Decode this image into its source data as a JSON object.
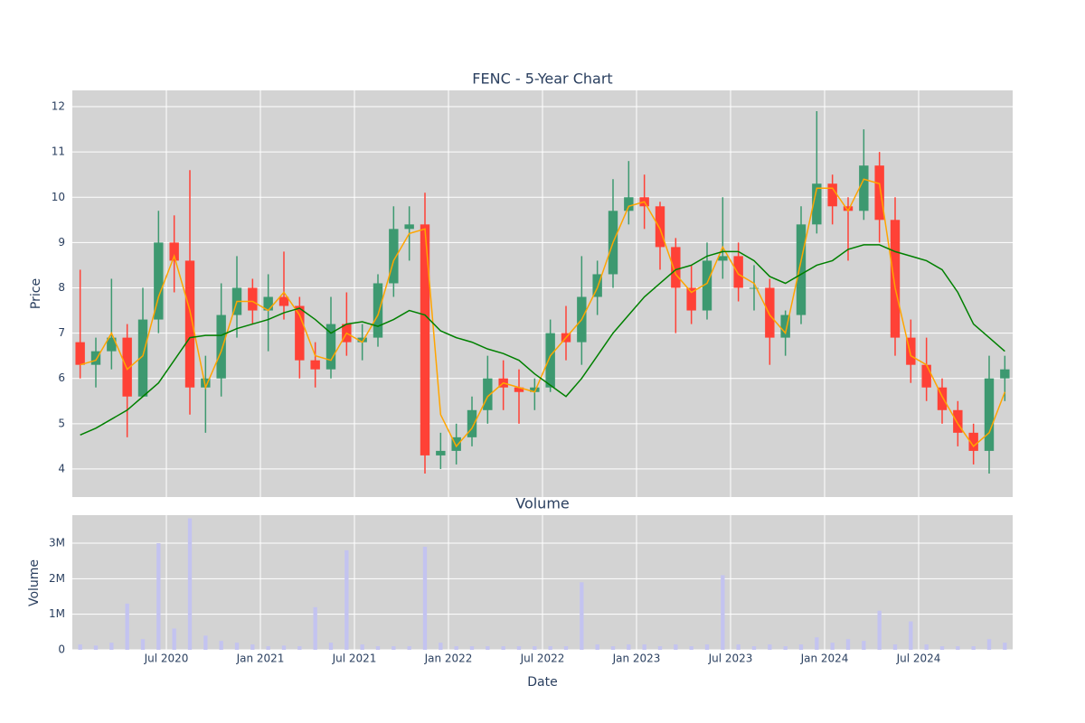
{
  "chart_data": [
    {
      "type": "candlestick",
      "title": "FENC - 5-Year Chart",
      "y_label": "Price",
      "x": [
        "2020-01",
        "2020-02",
        "2020-03",
        "2020-04",
        "2020-05",
        "2020-06",
        "2020-07",
        "2020-08",
        "2020-09",
        "2020-10",
        "2020-11",
        "2020-12",
        "2021-01",
        "2021-02",
        "2021-03",
        "2021-04",
        "2021-05",
        "2021-06",
        "2021-07",
        "2021-08",
        "2021-09",
        "2021-10",
        "2021-11",
        "2021-12",
        "2022-01",
        "2022-02",
        "2022-03",
        "2022-04",
        "2022-05",
        "2022-06",
        "2022-07",
        "2022-08",
        "2022-09",
        "2022-10",
        "2022-11",
        "2022-12",
        "2023-01",
        "2023-02",
        "2023-03",
        "2023-04",
        "2023-05",
        "2023-06",
        "2023-07",
        "2023-08",
        "2023-09",
        "2023-10",
        "2023-11",
        "2023-12",
        "2024-01",
        "2024-02",
        "2024-03",
        "2024-04",
        "2024-05",
        "2024-06",
        "2024-07",
        "2024-08",
        "2024-09",
        "2024-10",
        "2024-11",
        "2024-12"
      ],
      "open": [
        6.8,
        6.3,
        6.6,
        6.9,
        5.6,
        7.3,
        9.0,
        8.6,
        5.8,
        6.0,
        7.4,
        8.0,
        7.5,
        7.8,
        7.6,
        6.4,
        6.2,
        7.2,
        6.8,
        6.9,
        8.1,
        9.3,
        9.4,
        4.3,
        4.4,
        4.7,
        5.3,
        6.0,
        5.8,
        5.7,
        5.8,
        7.0,
        6.8,
        7.8,
        8.3,
        9.7,
        10.0,
        9.8,
        8.9,
        8.0,
        7.5,
        8.6,
        8.7,
        8.0,
        8.0,
        6.9,
        7.4,
        9.4,
        10.3,
        9.8,
        9.7,
        10.7,
        9.5,
        6.9,
        6.3,
        5.8,
        5.3,
        4.8,
        4.4,
        6.0
      ],
      "high": [
        8.4,
        6.9,
        8.2,
        7.2,
        8.0,
        9.7,
        9.6,
        10.6,
        6.5,
        8.1,
        8.7,
        8.2,
        8.3,
        8.8,
        7.8,
        6.8,
        7.8,
        7.9,
        7.2,
        8.3,
        9.8,
        9.8,
        10.1,
        4.8,
        5.0,
        5.6,
        6.5,
        6.4,
        6.2,
        6.0,
        7.3,
        7.6,
        8.7,
        8.6,
        10.4,
        10.8,
        10.5,
        9.9,
        9.1,
        8.5,
        9.0,
        10.0,
        9.0,
        8.5,
        8.2,
        7.5,
        9.8,
        11.9,
        10.5,
        10.0,
        11.5,
        11.0,
        10.0,
        7.3,
        6.9,
        6.0,
        5.5,
        5.0,
        6.5,
        6.5
      ],
      "low": [
        6.0,
        5.8,
        6.2,
        4.7,
        5.6,
        7.0,
        7.9,
        5.2,
        4.8,
        5.6,
        6.9,
        7.2,
        6.6,
        7.3,
        6.0,
        5.8,
        6.0,
        6.5,
        6.4,
        6.7,
        7.8,
        8.6,
        3.9,
        4.0,
        4.1,
        4.5,
        5.0,
        5.3,
        5.0,
        5.3,
        5.7,
        6.4,
        6.3,
        7.4,
        8.0,
        9.4,
        9.3,
        8.4,
        7.0,
        7.2,
        7.3,
        8.2,
        7.7,
        7.5,
        6.3,
        6.5,
        7.2,
        9.2,
        9.4,
        8.6,
        9.5,
        9.0,
        6.5,
        5.9,
        5.5,
        5.0,
        4.5,
        4.1,
        3.9,
        5.5
      ],
      "close": [
        6.3,
        6.6,
        6.9,
        5.6,
        7.3,
        9.0,
        8.6,
        5.8,
        6.0,
        7.4,
        8.0,
        7.5,
        7.8,
        7.6,
        6.4,
        6.2,
        7.2,
        6.8,
        6.9,
        8.1,
        9.3,
        9.4,
        4.3,
        4.4,
        4.7,
        5.3,
        6.0,
        5.8,
        5.7,
        5.8,
        7.0,
        6.8,
        7.8,
        8.3,
        9.7,
        10.0,
        9.8,
        8.9,
        8.0,
        7.5,
        8.6,
        8.7,
        8.0,
        8.0,
        6.9,
        7.4,
        9.4,
        10.3,
        9.8,
        9.7,
        10.7,
        9.5,
        6.9,
        6.3,
        5.8,
        5.3,
        4.8,
        4.4,
        6.0,
        6.2
      ],
      "increasing_color": "#3d9970",
      "decreasing_color": "#ff4136",
      "lines": [
        {
          "color": "orange",
          "values": [
            6.3,
            6.4,
            7.0,
            6.2,
            6.5,
            7.8,
            8.7,
            7.5,
            5.8,
            6.6,
            7.7,
            7.7,
            7.5,
            7.9,
            7.4,
            6.5,
            6.4,
            7.0,
            6.8,
            7.4,
            8.6,
            9.2,
            9.3,
            5.2,
            4.5,
            4.9,
            5.6,
            5.9,
            5.8,
            5.7,
            6.5,
            6.9,
            7.3,
            8.0,
            9.0,
            9.8,
            9.9,
            9.3,
            8.3,
            7.9,
            8.1,
            8.9,
            8.3,
            8.1,
            7.4,
            7.0,
            8.6,
            10.2,
            10.2,
            9.7,
            10.4,
            10.3,
            8.0,
            6.5,
            6.3,
            5.6,
            5.0,
            4.5,
            4.8,
            5.7
          ]
        },
        {
          "color": "green",
          "values": [
            4.75,
            4.9,
            5.1,
            5.3,
            5.6,
            5.9,
            6.4,
            6.9,
            6.95,
            6.95,
            7.1,
            7.2,
            7.3,
            7.45,
            7.55,
            7.3,
            7.0,
            7.2,
            7.25,
            7.15,
            7.3,
            7.5,
            7.4,
            7.05,
            6.9,
            6.8,
            6.65,
            6.55,
            6.4,
            6.1,
            5.85,
            5.6,
            6.0,
            6.5,
            7.0,
            7.4,
            7.8,
            8.1,
            8.4,
            8.5,
            8.7,
            8.8,
            8.8,
            8.6,
            8.25,
            8.1,
            8.3,
            8.5,
            8.6,
            8.85,
            8.95,
            8.95,
            8.8,
            8.7,
            8.6,
            8.4,
            7.9,
            7.2,
            6.9,
            6.6
          ]
        }
      ],
      "xlim": [
        "2020-01",
        "2025-01"
      ],
      "ylim": [
        3.38,
        12.36
      ],
      "yticks": [
        4,
        5,
        6,
        7,
        8,
        9,
        10,
        11,
        12
      ],
      "grid": true,
      "background": "#d3d3d3"
    },
    {
      "type": "bar",
      "title": "Volume",
      "x_label": "Date",
      "y_label": "Volume",
      "x": [
        "2020-01",
        "2020-02",
        "2020-03",
        "2020-04",
        "2020-05",
        "2020-06",
        "2020-07",
        "2020-08",
        "2020-09",
        "2020-10",
        "2020-11",
        "2020-12",
        "2021-01",
        "2021-02",
        "2021-03",
        "2021-04",
        "2021-05",
        "2021-06",
        "2021-07",
        "2021-08",
        "2021-09",
        "2021-10",
        "2021-11",
        "2021-12",
        "2022-01",
        "2022-02",
        "2022-03",
        "2022-04",
        "2022-05",
        "2022-06",
        "2022-07",
        "2022-08",
        "2022-09",
        "2022-10",
        "2022-11",
        "2022-12",
        "2023-01",
        "2023-02",
        "2023-03",
        "2023-04",
        "2023-05",
        "2023-06",
        "2023-07",
        "2023-08",
        "2023-09",
        "2023-10",
        "2023-11",
        "2023-12",
        "2024-01",
        "2024-02",
        "2024-03",
        "2024-04",
        "2024-05",
        "2024-06",
        "2024-07",
        "2024-08",
        "2024-09",
        "2024-10",
        "2024-11",
        "2024-12"
      ],
      "values": [
        150000,
        120000,
        200000,
        1300000,
        300000,
        3000000,
        600000,
        3700000,
        400000,
        250000,
        200000,
        150000,
        100000,
        120000,
        100000,
        1200000,
        200000,
        2800000,
        150000,
        100000,
        100000,
        100000,
        2900000,
        200000,
        100000,
        100000,
        100000,
        100000,
        100000,
        100000,
        100000,
        100000,
        1900000,
        150000,
        100000,
        150000,
        150000,
        100000,
        150000,
        100000,
        150000,
        2100000,
        150000,
        100000,
        150000,
        100000,
        150000,
        350000,
        200000,
        300000,
        250000,
        1100000,
        150000,
        800000,
        150000,
        100000,
        100000,
        100000,
        300000,
        200000
      ],
      "color": "#c3c3f0",
      "xlim": [
        "2020-01",
        "2025-01"
      ],
      "xticks": [
        {
          "value": "2020-07",
          "label": "Jul 2020"
        },
        {
          "value": "2021-01",
          "label": "Jan 2021"
        },
        {
          "value": "2021-07",
          "label": "Jul 2021"
        },
        {
          "value": "2022-01",
          "label": "Jan 2022"
        },
        {
          "value": "2022-07",
          "label": "Jul 2022"
        },
        {
          "value": "2023-01",
          "label": "Jan 2023"
        },
        {
          "value": "2023-07",
          "label": "Jul 2023"
        },
        {
          "value": "2024-01",
          "label": "Jan 2024"
        },
        {
          "value": "2024-07",
          "label": "Jul 2024"
        }
      ],
      "ylim": [
        0,
        3790000
      ],
      "yticks": [
        0,
        {
          "value": 1000000,
          "label": "1M"
        },
        {
          "value": 2000000,
          "label": "2M"
        },
        {
          "value": 3000000,
          "label": "3M"
        }
      ],
      "grid": true,
      "background": "#d3d3d3"
    }
  ]
}
